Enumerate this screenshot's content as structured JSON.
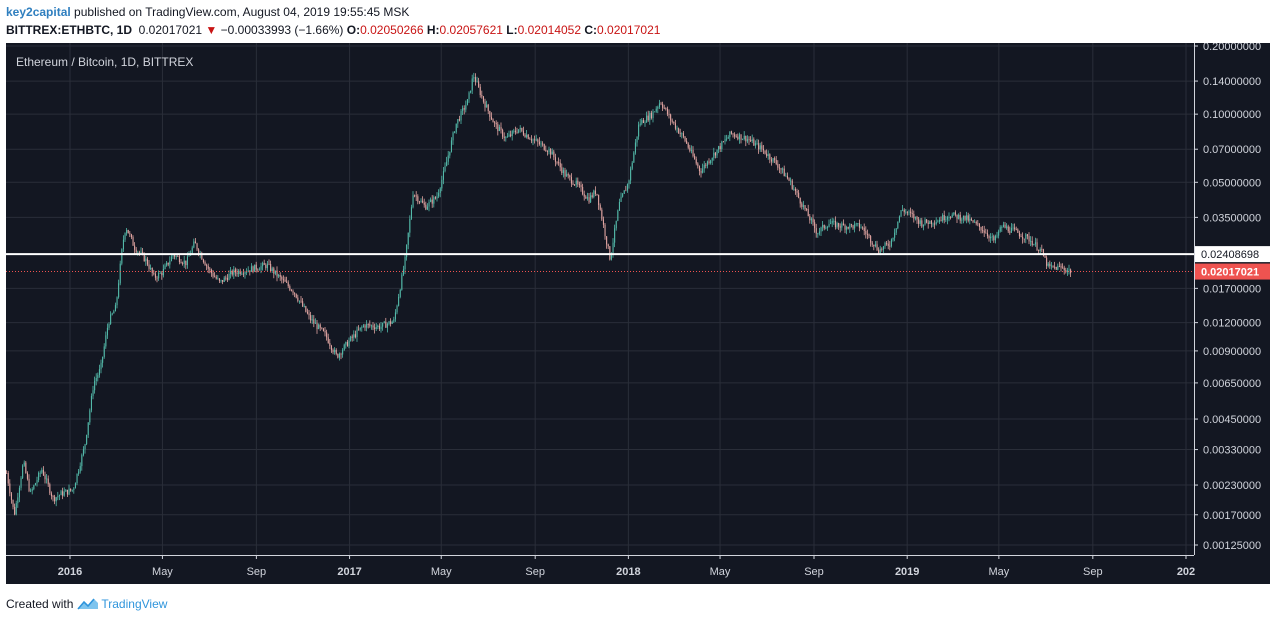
{
  "header": {
    "author": "key2capital",
    "published_text": " published on TradingView.com, August 04, 2019 19:55:45 MSK",
    "symbol": "BITTREX:ETHBTC, 1D",
    "last": "0.02017021",
    "change": "−0.00033993 (−1.66%)",
    "o_label": "O:",
    "o_value": "0.02050266",
    "h_label": "H:",
    "h_value": "0.02057621",
    "l_label": "L:",
    "l_value": "0.02014052",
    "c_label": "C:",
    "c_value": "0.02017021"
  },
  "footer": {
    "created_with": "Created with",
    "brand": "TradingView"
  },
  "colors": {
    "background": "#131722",
    "grid": "#2a2e39",
    "up": "#53b9a9",
    "down": "#e0a4a1",
    "level_line": "#ffffff",
    "last_price": "#ef5350"
  },
  "chart_data": {
    "type": "candlestick",
    "title": "Ethereum / Bitcoin, 1D, BITTREX",
    "scale": "log",
    "y_ticks": [
      "0.20000000",
      "0.14000000",
      "0.10000000",
      "0.07000000",
      "0.05000000",
      "0.03500000",
      "0.01700000",
      "0.01200000",
      "0.00900000",
      "0.00650000",
      "0.00450000",
      "0.00330000",
      "0.00230000",
      "0.00170000",
      "0.00125000"
    ],
    "x_ticks": [
      {
        "label": "2016",
        "bold": true,
        "date": "2016-01-01"
      },
      {
        "label": "May",
        "bold": false,
        "date": "2016-05-01"
      },
      {
        "label": "Sep",
        "bold": false,
        "date": "2016-09-01"
      },
      {
        "label": "2017",
        "bold": true,
        "date": "2017-01-01"
      },
      {
        "label": "May",
        "bold": false,
        "date": "2017-05-01"
      },
      {
        "label": "Sep",
        "bold": false,
        "date": "2017-09-01"
      },
      {
        "label": "2018",
        "bold": true,
        "date": "2018-01-01"
      },
      {
        "label": "May",
        "bold": false,
        "date": "2018-05-01"
      },
      {
        "label": "Sep",
        "bold": false,
        "date": "2018-09-01"
      },
      {
        "label": "2019",
        "bold": true,
        "date": "2019-01-01"
      },
      {
        "label": "May",
        "bold": false,
        "date": "2019-05-01"
      },
      {
        "label": "Sep",
        "bold": false,
        "date": "2019-09-01"
      },
      {
        "label": "202",
        "bold": true,
        "date": "2020-01-01"
      }
    ],
    "horizontal_level": {
      "value": 0.02408698,
      "label": "0.02408698"
    },
    "last_price": {
      "value": 0.02017021,
      "label": "0.02017021"
    },
    "price_path": [
      [
        "2015-10-10",
        0.0026
      ],
      [
        "2015-10-20",
        0.0017
      ],
      [
        "2015-11-01",
        0.0029
      ],
      [
        "2015-11-10",
        0.0021
      ],
      [
        "2015-11-25",
        0.0027
      ],
      [
        "2015-12-10",
        0.002
      ],
      [
        "2015-12-20",
        0.0021
      ],
      [
        "2016-01-05",
        0.0022
      ],
      [
        "2016-01-20",
        0.0034
      ],
      [
        "2016-02-01",
        0.0065
      ],
      [
        "2016-02-10",
        0.0075
      ],
      [
        "2016-02-20",
        0.012
      ],
      [
        "2016-03-01",
        0.014
      ],
      [
        "2016-03-10",
        0.027
      ],
      [
        "2016-03-14",
        0.032
      ],
      [
        "2016-03-25",
        0.026
      ],
      [
        "2016-04-10",
        0.0225
      ],
      [
        "2016-04-20",
        0.019
      ],
      [
        "2016-05-01",
        0.02
      ],
      [
        "2016-05-15",
        0.024
      ],
      [
        "2016-06-01",
        0.022
      ],
      [
        "2016-06-12",
        0.027
      ],
      [
        "2016-06-20",
        0.024
      ],
      [
        "2016-07-01",
        0.0205
      ],
      [
        "2016-07-15",
        0.018
      ],
      [
        "2016-08-01",
        0.02
      ],
      [
        "2016-08-20",
        0.0205
      ],
      [
        "2016-09-01",
        0.021
      ],
      [
        "2016-09-15",
        0.0215
      ],
      [
        "2016-10-01",
        0.019
      ],
      [
        "2016-10-20",
        0.0165
      ],
      [
        "2016-11-10",
        0.0125
      ],
      [
        "2016-12-01",
        0.0105
      ],
      [
        "2016-12-15",
        0.0085
      ],
      [
        "2017-01-01",
        0.01
      ],
      [
        "2017-01-20",
        0.0117
      ],
      [
        "2017-02-10",
        0.0115
      ],
      [
        "2017-02-28",
        0.0122
      ],
      [
        "2017-03-15",
        0.023
      ],
      [
        "2017-03-25",
        0.045
      ],
      [
        "2017-04-10",
        0.039
      ],
      [
        "2017-04-25",
        0.043
      ],
      [
        "2017-05-05",
        0.056
      ],
      [
        "2017-05-20",
        0.09
      ],
      [
        "2017-06-05",
        0.115
      ],
      [
        "2017-06-12",
        0.149
      ],
      [
        "2017-06-25",
        0.115
      ],
      [
        "2017-07-10",
        0.09
      ],
      [
        "2017-07-25",
        0.078
      ],
      [
        "2017-08-10",
        0.086
      ],
      [
        "2017-09-01",
        0.076
      ],
      [
        "2017-09-20",
        0.069
      ],
      [
        "2017-10-10",
        0.054
      ],
      [
        "2017-10-25",
        0.049
      ],
      [
        "2017-11-10",
        0.042
      ],
      [
        "2017-11-20",
        0.046
      ],
      [
        "2017-12-08",
        0.023
      ],
      [
        "2017-12-20",
        0.04
      ],
      [
        "2018-01-01",
        0.05
      ],
      [
        "2018-01-15",
        0.091
      ],
      [
        "2018-02-01",
        0.1
      ],
      [
        "2018-02-12",
        0.114
      ],
      [
        "2018-02-25",
        0.095
      ],
      [
        "2018-03-15",
        0.078
      ],
      [
        "2018-04-05",
        0.056
      ],
      [
        "2018-04-25",
        0.068
      ],
      [
        "2018-05-15",
        0.082
      ],
      [
        "2018-06-05",
        0.078
      ],
      [
        "2018-06-25",
        0.07
      ],
      [
        "2018-07-15",
        0.06
      ],
      [
        "2018-08-01",
        0.05
      ],
      [
        "2018-08-20",
        0.038
      ],
      [
        "2018-09-05",
        0.03
      ],
      [
        "2018-09-20",
        0.033
      ],
      [
        "2018-10-10",
        0.032
      ],
      [
        "2018-11-01",
        0.032
      ],
      [
        "2018-11-25",
        0.025
      ],
      [
        "2018-12-10",
        0.027
      ],
      [
        "2018-12-25",
        0.038
      ],
      [
        "2019-01-05",
        0.036
      ],
      [
        "2019-01-20",
        0.033
      ],
      [
        "2019-02-10",
        0.034
      ],
      [
        "2019-02-25",
        0.036
      ],
      [
        "2019-03-20",
        0.0345
      ],
      [
        "2019-04-10",
        0.031
      ],
      [
        "2019-04-25",
        0.0275
      ],
      [
        "2019-05-05",
        0.032
      ],
      [
        "2019-05-25",
        0.03
      ],
      [
        "2019-06-10",
        0.028
      ],
      [
        "2019-06-25",
        0.025
      ],
      [
        "2019-07-05",
        0.021
      ],
      [
        "2019-07-20",
        0.021
      ],
      [
        "2019-08-04",
        0.0202
      ]
    ]
  }
}
